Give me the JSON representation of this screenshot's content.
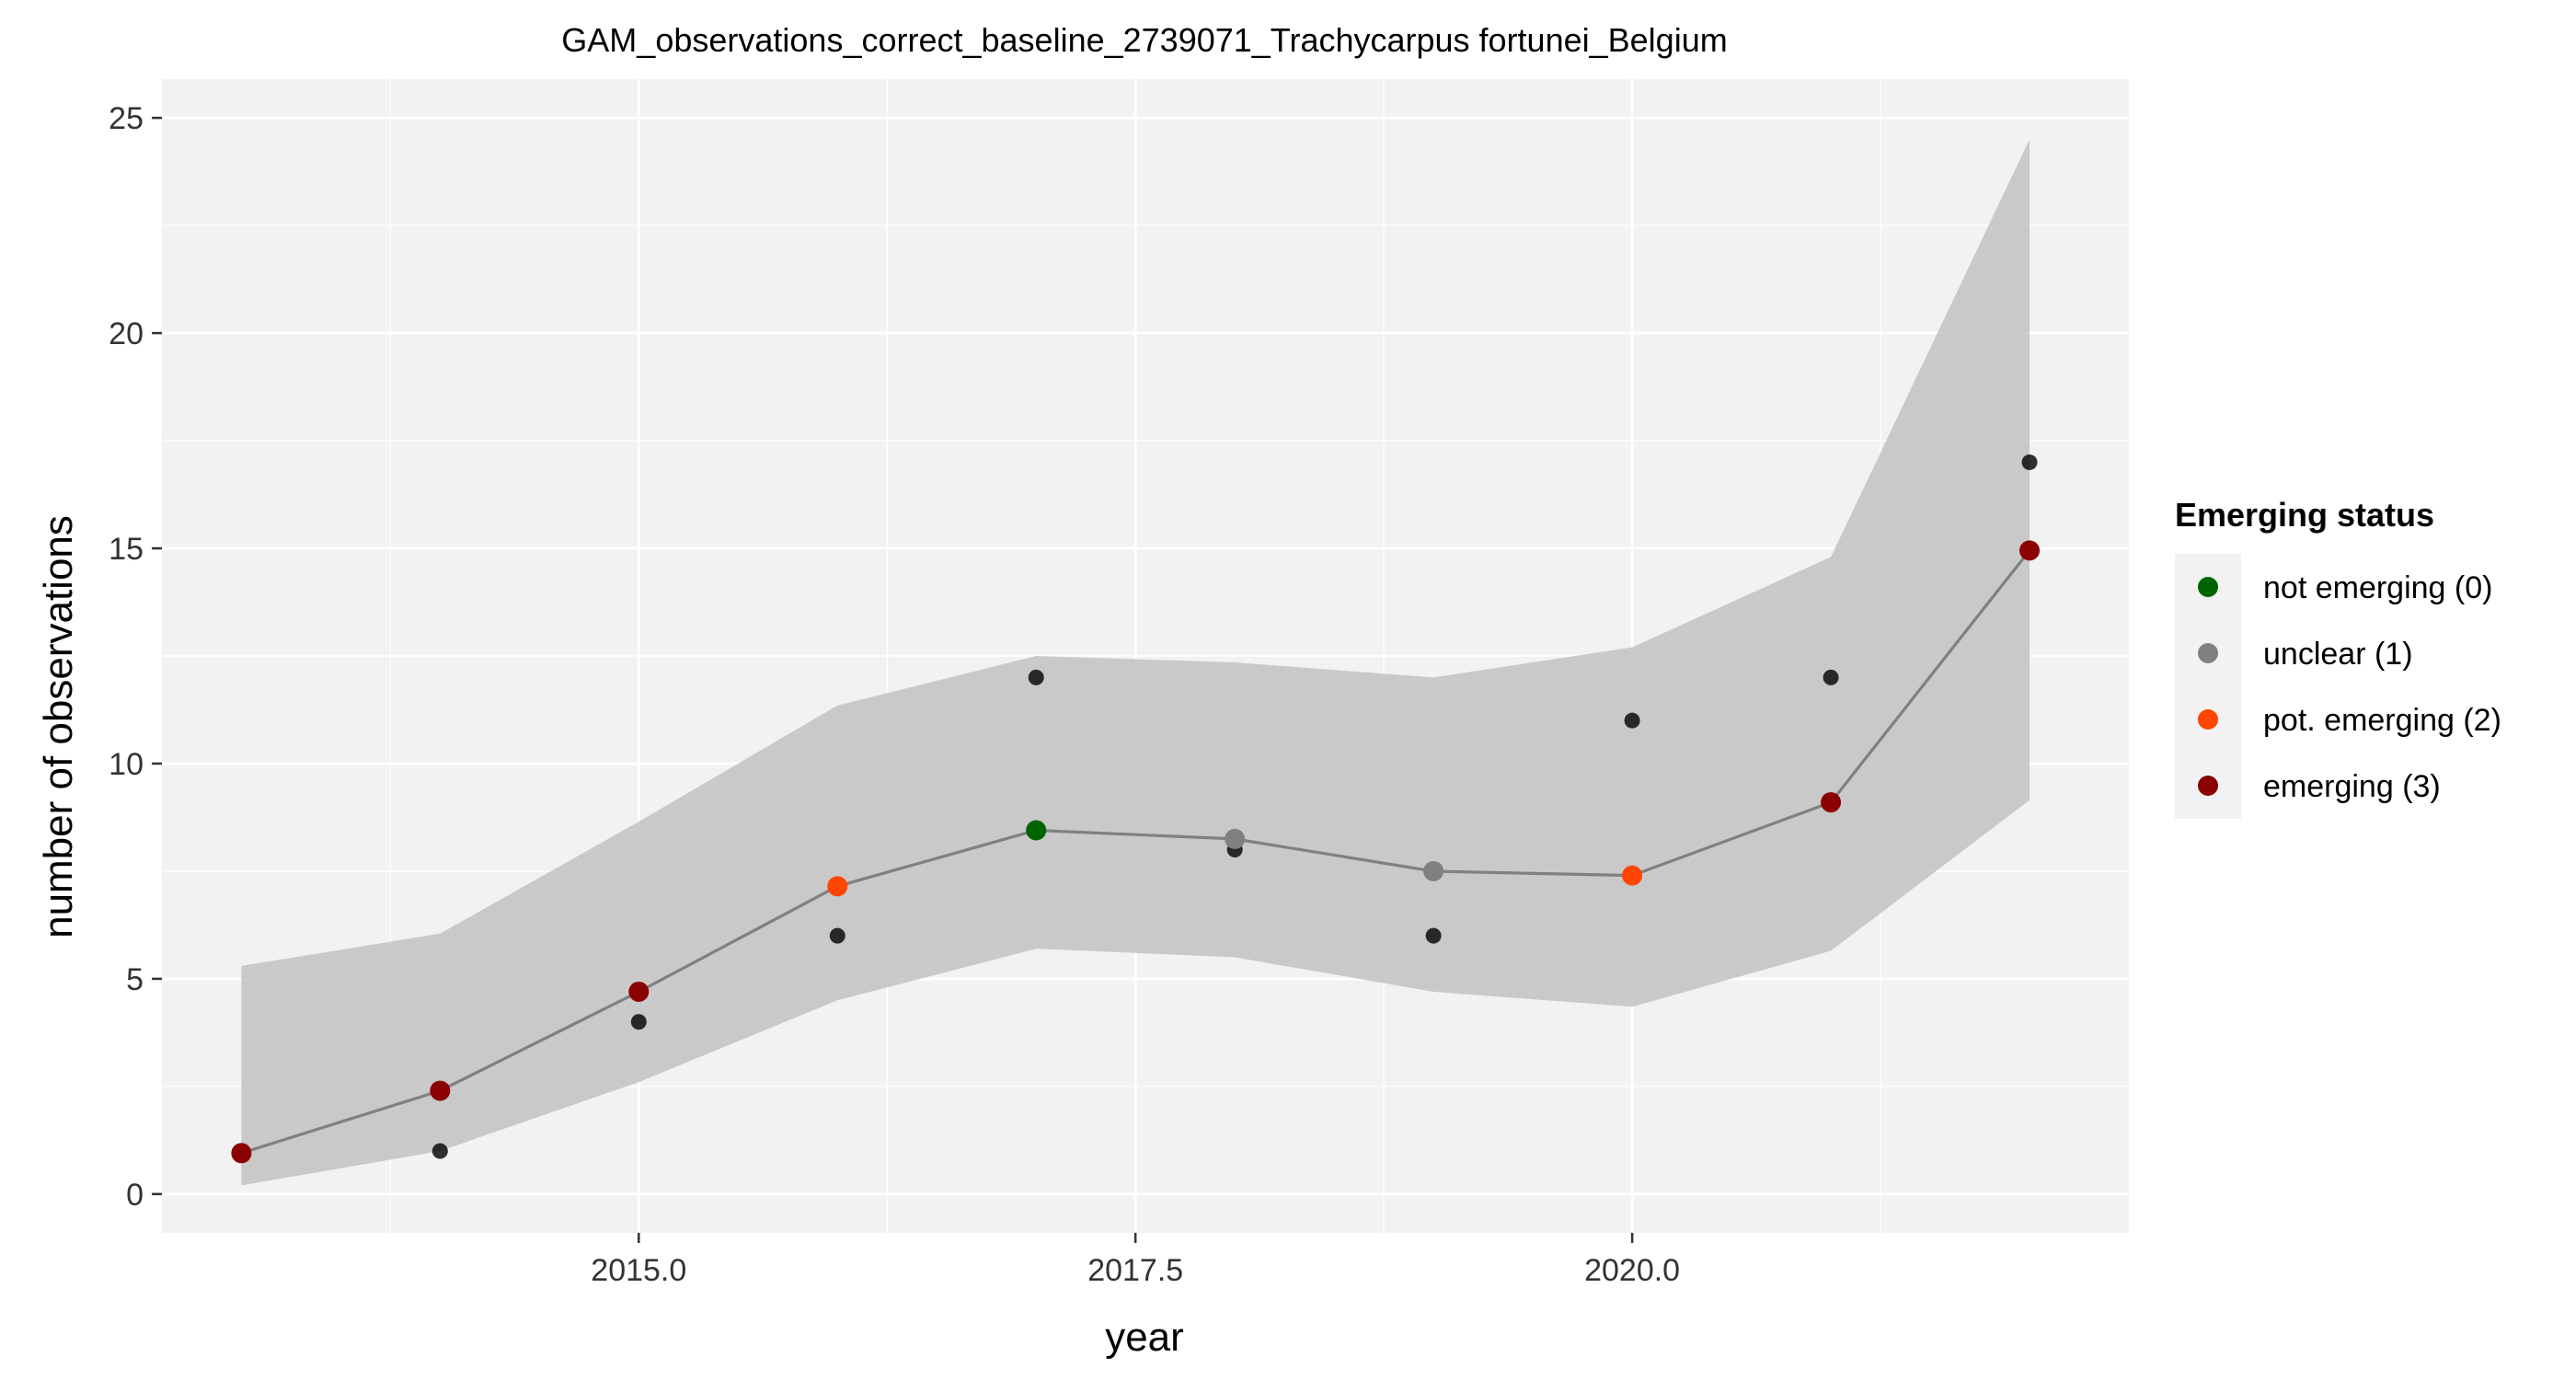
{
  "chart_data": {
    "type": "line",
    "title": "GAM_observations_correct_baseline_2739071_Trachycarpus fortunei_Belgium",
    "xlabel": "year",
    "ylabel": "number of observations",
    "xlim": [
      2012.6,
      2022.5
    ],
    "ylim": [
      -0.9,
      25.9
    ],
    "x_ticks": [
      2015.0,
      2017.5,
      2020.0
    ],
    "x_tick_labels": [
      "2015.0",
      "2017.5",
      "2020.0"
    ],
    "y_ticks": [
      0,
      5,
      10,
      15,
      20,
      25
    ],
    "y_tick_labels": [
      "0",
      "5",
      "10",
      "15",
      "20",
      "25"
    ],
    "grid": true,
    "x": [
      2013,
      2014,
      2015,
      2016,
      2017,
      2018,
      2019,
      2020,
      2021,
      2022
    ],
    "observed": [
      1,
      1,
      4,
      6,
      12,
      8,
      6,
      11,
      12,
      17
    ],
    "fit": [
      0.95,
      2.4,
      4.7,
      7.15,
      8.45,
      8.25,
      7.5,
      7.4,
      9.1,
      14.95
    ],
    "lower": [
      0.2,
      1.0,
      2.6,
      4.5,
      5.7,
      5.5,
      4.7,
      4.35,
      5.65,
      9.15
    ],
    "upper": [
      5.3,
      6.05,
      8.65,
      11.35,
      12.5,
      12.35,
      12.0,
      12.7,
      14.8,
      24.5
    ],
    "status": [
      3,
      3,
      3,
      2,
      0,
      1,
      1,
      2,
      3,
      3
    ],
    "legend": {
      "title": "Emerging status",
      "position": "right",
      "entries": [
        {
          "label": "not emerging (0)",
          "code": 0,
          "color": "#006400"
        },
        {
          "label": "unclear (1)",
          "code": 1,
          "color": "#808080"
        },
        {
          "label": "pot. emerging (2)",
          "code": 2,
          "color": "#FF4500"
        },
        {
          "label": "emerging (3)",
          "code": 3,
          "color": "#8B0000"
        }
      ]
    },
    "colors": {
      "panel_bg": "#F2F2F2",
      "grid": "#FFFFFF",
      "ribbon": "#BEBEBE",
      "fit_line": "#808080",
      "observed_point": "#000000"
    }
  }
}
